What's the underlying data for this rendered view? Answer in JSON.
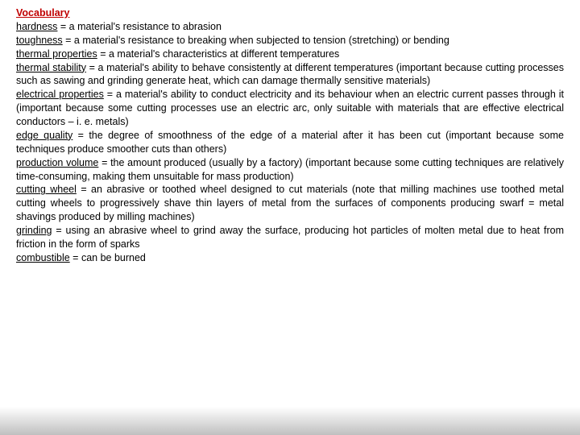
{
  "colors": {
    "title_color": "#c00000",
    "text_color": "#000000",
    "background": "#ffffff"
  },
  "typography": {
    "font_family": "Arial",
    "font_size_pt": 9.5,
    "title_weight": "bold",
    "line_height": 1.35,
    "text_align": "justify"
  },
  "title": "Vocabulary",
  "entries": [
    {
      "term": "hardness",
      "def": " = a material's resistance to abrasion"
    },
    {
      "term": "toughness",
      "def": " = a material's resistance to breaking when subjected to tension (stretching) or bending"
    },
    {
      "term": "thermal properties",
      "def": " = a material's characteristics at different temperatures"
    },
    {
      "term": "thermal stability",
      "def": " = a material's ability to behave consistently at different temperatures (important because cutting processes such as sawing and grinding generate heat, which can damage thermally sensitive materials)"
    },
    {
      "term": "electrical properties",
      "def": " = a material's ability to conduct electricity and its behaviour when an electric current passes through it (important because some cutting processes use an electric arc, only suitable with materials that are effective electrical conductors – i. e. metals)"
    },
    {
      "term": "edge quality",
      "def": " = the degree of smoothness of the edge of a material after it has been cut (important because some techniques produce smoother cuts than others)"
    },
    {
      "term": "production volume",
      "def": " = the amount produced (usually by a factory) (important because some cutting techniques are relatively time-consuming, making them unsuitable for mass production)"
    },
    {
      "term": "cutting wheel",
      "def": " = an abrasive or toothed wheel designed to cut materials (note that milling machines use toothed metal cutting wheels to progressively shave thin layers of metal from the surfaces of components producing swarf = metal shavings produced by milling machines)"
    },
    {
      "term": "grinding",
      "def": " = using an abrasive wheel to grind away the surface, producing hot particles of molten metal due to heat from friction in the form of sparks"
    },
    {
      "term": "combustible",
      "def": " = can be burned"
    }
  ]
}
